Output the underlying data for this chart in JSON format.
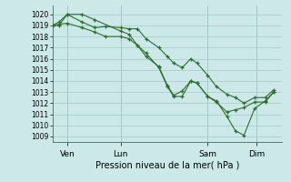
{
  "xlabel": "Pression niveau de la mer( hPa )",
  "bg_color": "#cce8e8",
  "grid_color": "#aacfcf",
  "line_color": "#2d6e2d",
  "marker_color": "#2d6e2d",
  "ylim": [
    1008.5,
    1020.8
  ],
  "yticks": [
    1009,
    1010,
    1011,
    1012,
    1013,
    1014,
    1015,
    1016,
    1017,
    1018,
    1019,
    1020
  ],
  "xlim": [
    0,
    108
  ],
  "day_positions": [
    7,
    32,
    73,
    96
  ],
  "day_labels": [
    "Ven",
    "Lun",
    "Sam",
    "Dim"
  ],
  "series": [
    [
      0,
      1019,
      3,
      1019,
      7,
      1020,
      14,
      1020,
      20,
      1019.5,
      32,
      1018.5,
      36,
      1018.2,
      40,
      1017.2,
      44,
      1016.5,
      50,
      1015.2,
      54,
      1013.5,
      57,
      1012.6,
      61,
      1012.6,
      65,
      1014.0,
      68,
      1013.8,
      73,
      1012.6,
      77,
      1012.2,
      82,
      1010.8,
      86,
      1009.5,
      90,
      1009.1,
      95,
      1011.5,
      100,
      1012.2,
      104,
      1013.0
    ],
    [
      0,
      1019,
      3,
      1019.1,
      7,
      1019.2,
      14,
      1018.8,
      20,
      1018.4,
      25,
      1018.0,
      32,
      1018.0,
      36,
      1017.8,
      40,
      1017.2,
      44,
      1016.2,
      50,
      1015.3,
      54,
      1013.6,
      57,
      1012.7,
      61,
      1013.1,
      65,
      1014.0,
      68,
      1013.8,
      73,
      1012.6,
      77,
      1012.1,
      82,
      1011.2,
      86,
      1011.4,
      90,
      1011.6,
      95,
      1012.1,
      100,
      1012.1,
      104,
      1013.0
    ],
    [
      0,
      1019,
      3,
      1019.3,
      7,
      1020.0,
      14,
      1019.3,
      20,
      1018.8,
      25,
      1018.9,
      32,
      1018.8,
      36,
      1018.7,
      40,
      1018.7,
      44,
      1017.8,
      50,
      1017.0,
      54,
      1016.2,
      57,
      1015.6,
      61,
      1015.2,
      65,
      1016.0,
      68,
      1015.6,
      73,
      1014.5,
      77,
      1013.5,
      82,
      1012.8,
      86,
      1012.5,
      90,
      1012.0,
      95,
      1012.5,
      100,
      1012.5,
      104,
      1013.2
    ]
  ]
}
